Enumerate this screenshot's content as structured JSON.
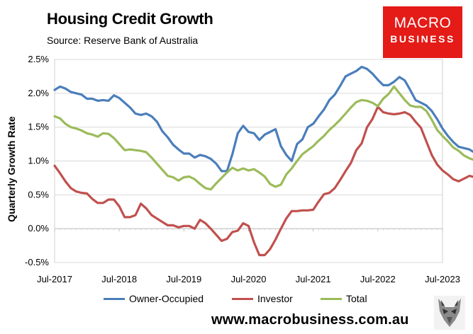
{
  "header": {
    "title": "Housing Credit Growth",
    "subtitle": "Source: Reserve Bank of Australia"
  },
  "logo": {
    "line1": "MACRO",
    "line2": "BUSINESS",
    "color": "#e41b17"
  },
  "footer": {
    "website": "www.macrobusiness.com.au",
    "mascot_icon": "fox-icon"
  },
  "chart_data": {
    "type": "line",
    "title": "Housing Credit Growth",
    "subtitle": "Source: Reserve Bank of Australia",
    "xlabel": "",
    "ylabel": "Quarterly Growth Rate",
    "x_start": "Jul-2017",
    "x_end": "Jul-2023",
    "x_frequency": "monthly",
    "x_tick_labels": [
      "Jul-2017",
      "Jul-2018",
      "Jul-2019",
      "Jul-2020",
      "Jul-2021",
      "Jul-2022",
      "Jul-2023"
    ],
    "y_tick_labels": [
      "-0.5%",
      "0.0%",
      "0.5%",
      "1.0%",
      "1.5%",
      "2.0%",
      "2.5%"
    ],
    "ylim": [
      -0.5,
      2.5
    ],
    "y_unit": "%",
    "grid": true,
    "legend_position": "bottom",
    "series": [
      {
        "name": "Owner-Occupied",
        "color": "#4a7ebb",
        "values": [
          2.05,
          2.1,
          2.07,
          2.02,
          2.0,
          1.98,
          1.92,
          1.92,
          1.89,
          1.9,
          1.89,
          1.97,
          1.93,
          1.86,
          1.79,
          1.7,
          1.68,
          1.7,
          1.66,
          1.58,
          1.44,
          1.35,
          1.24,
          1.17,
          1.11,
          1.11,
          1.05,
          1.09,
          1.07,
          1.03,
          0.96,
          0.85,
          0.85,
          1.1,
          1.41,
          1.52,
          1.43,
          1.41,
          1.31,
          1.39,
          1.43,
          1.47,
          1.22,
          1.09,
          1.0,
          1.25,
          1.32,
          1.5,
          1.55,
          1.66,
          1.76,
          1.9,
          1.98,
          2.11,
          2.25,
          2.29,
          2.33,
          2.39,
          2.36,
          2.29,
          2.2,
          2.12,
          2.12,
          2.17,
          2.24,
          2.19,
          2.05,
          1.9,
          1.86,
          1.82,
          1.74,
          1.62,
          1.48,
          1.37,
          1.28,
          1.21,
          1.19,
          1.17,
          1.12,
          1.07,
          1.09,
          1.14,
          1.13,
          1.12
        ]
      },
      {
        "name": "Investor",
        "color": "#c0504d",
        "values": [
          0.93,
          0.82,
          0.7,
          0.6,
          0.55,
          0.53,
          0.52,
          0.44,
          0.38,
          0.38,
          0.43,
          0.43,
          0.33,
          0.17,
          0.17,
          0.2,
          0.37,
          0.3,
          0.2,
          0.15,
          0.1,
          0.05,
          0.05,
          0.02,
          0.04,
          0.04,
          0.0,
          0.13,
          0.08,
          0.0,
          -0.09,
          -0.18,
          -0.15,
          -0.05,
          -0.03,
          0.08,
          0.04,
          -0.2,
          -0.39,
          -0.39,
          -0.3,
          -0.16,
          0.0,
          0.15,
          0.26,
          0.26,
          0.27,
          0.27,
          0.28,
          0.4,
          0.51,
          0.53,
          0.6,
          0.72,
          0.85,
          0.97,
          1.16,
          1.26,
          1.5,
          1.62,
          1.8,
          1.72,
          1.7,
          1.69,
          1.7,
          1.72,
          1.68,
          1.58,
          1.49,
          1.29,
          1.09,
          0.95,
          0.86,
          0.8,
          0.73,
          0.7,
          0.74,
          0.78,
          0.76,
          0.72,
          0.68,
          0.67,
          0.67,
          0.67
        ]
      },
      {
        "name": "Total",
        "color": "#9bbb59",
        "values": [
          1.66,
          1.63,
          1.55,
          1.5,
          1.48,
          1.45,
          1.41,
          1.39,
          1.36,
          1.41,
          1.4,
          1.34,
          1.25,
          1.16,
          1.17,
          1.16,
          1.15,
          1.13,
          1.05,
          0.96,
          0.87,
          0.78,
          0.76,
          0.71,
          0.76,
          0.77,
          0.73,
          0.66,
          0.6,
          0.58,
          0.67,
          0.75,
          0.83,
          0.9,
          0.86,
          0.89,
          0.86,
          0.88,
          0.83,
          0.77,
          0.66,
          0.62,
          0.65,
          0.8,
          0.89,
          1.0,
          1.1,
          1.16,
          1.22,
          1.3,
          1.37,
          1.46,
          1.53,
          1.61,
          1.7,
          1.79,
          1.87,
          1.9,
          1.89,
          1.86,
          1.81,
          1.92,
          1.99,
          2.1,
          2.0,
          1.9,
          1.82,
          1.8,
          1.8,
          1.74,
          1.61,
          1.46,
          1.37,
          1.29,
          1.2,
          1.15,
          1.08,
          1.04,
          1.01,
          0.99,
          0.98,
          0.97,
          0.98,
          0.97
        ]
      }
    ]
  }
}
